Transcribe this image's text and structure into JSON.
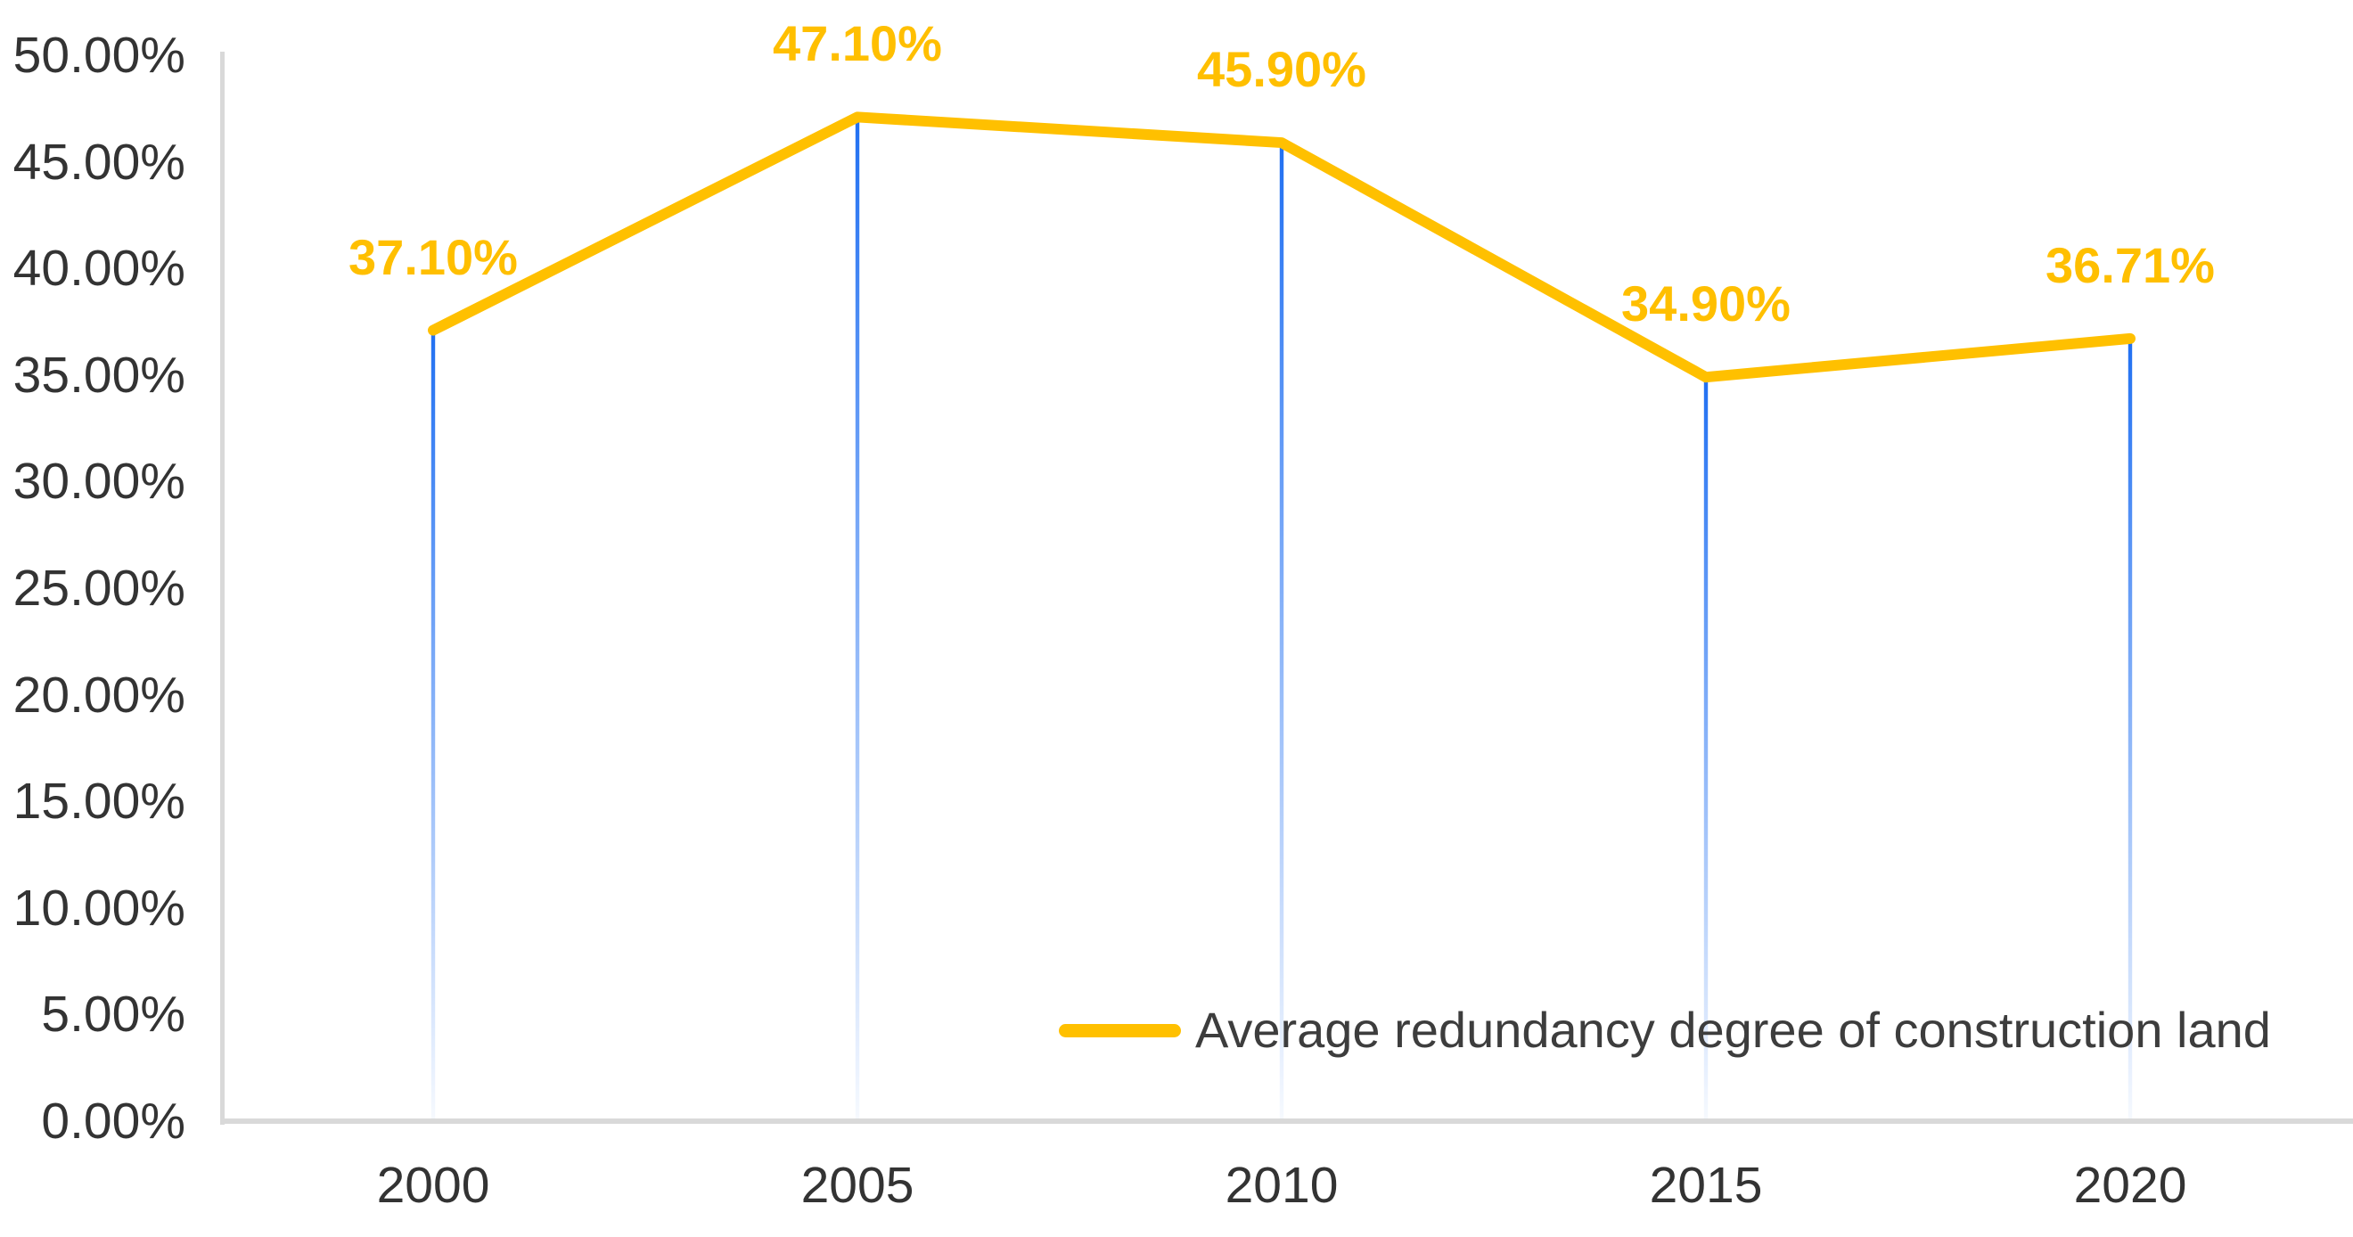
{
  "chart_data": {
    "type": "line",
    "title": "",
    "categories": [
      "2000",
      "2005",
      "2010",
      "2015",
      "2020"
    ],
    "series": [
      {
        "name": "Average redundancy degree of construction land",
        "values": [
          37.1,
          47.1,
          45.9,
          34.9,
          36.71
        ]
      }
    ],
    "data_labels": [
      "37.10%",
      "47.10%",
      "45.90%",
      "34.90%",
      "36.71%"
    ],
    "ylim": [
      0,
      50
    ],
    "ytick_step": 5,
    "ytick_labels": [
      "0.00%",
      "5.00%",
      "10.00%",
      "15.00%",
      "20.00%",
      "25.00%",
      "30.00%",
      "35.00%",
      "40.00%",
      "45.00%",
      "50.00%"
    ],
    "xlabel": "",
    "ylabel": "",
    "grid": false,
    "legend_position": "inside-bottom-right",
    "legend": {
      "label": "Average redundancy degree of construction land"
    },
    "annotations": "thin vertical blue drop lines from each data point to the x-axis, fading toward the bottom",
    "colors": {
      "series_line": "#FFC000",
      "data_label": "#FFBF00",
      "drop_line": "#2170F2",
      "axis": "#D9D9D9",
      "tick_text": "#333333",
      "legend_text": "#3D3D3D",
      "background": "#FFFFFF"
    }
  }
}
